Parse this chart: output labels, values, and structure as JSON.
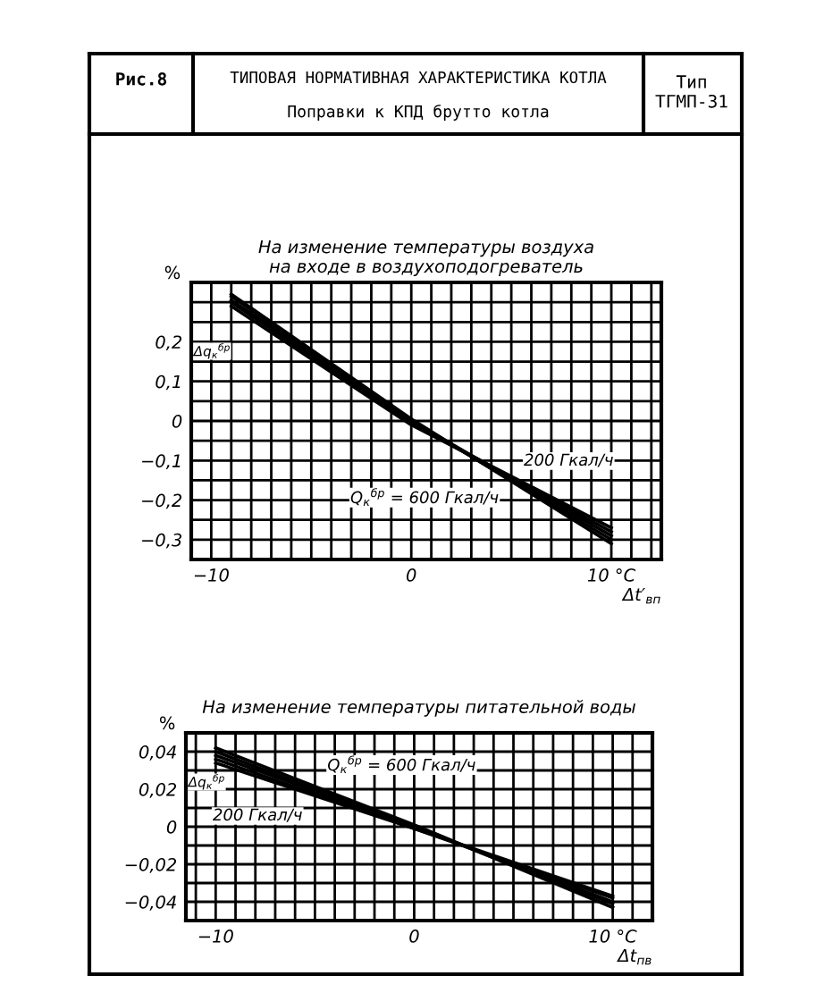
{
  "chart_data": [
    {
      "type": "line",
      "title": "ТИПОВАЯ НОРМАТИВНАЯ ХАРАКТЕРИСТИКА КОТЛА",
      "subtitle": "Поправки к КПД брутто котла",
      "annotations": [
        "Рис.8",
        "Тип\nТГМП-31",
        "На изменение температуры воздуха\nна входе в воздухоподогреватель",
        "Δq$_{к}$$^{бр}$"
      ],
      "ylabel": "%",
      "xlabel": "Δt′$_{вп}$",
      "x": [
        -9,
        0,
        10
      ],
      "series": [
        {
          "name": "200 Гкал/ч",
          "color": "#000000",
          "values": [
            0.32,
            0.005,
            -0.31
          ]
        },
        {
          "color": "#000000",
          "values": [
            0.315,
            0.0,
            -0.3
          ]
        },
        {
          "color": "#000000",
          "values": [
            0.305,
            0.0,
            -0.29
          ]
        },
        {
          "color": "#000000",
          "values": [
            0.3,
            -0.005,
            -0.28
          ]
        },
        {
          "name": "Q$_{к}$$^{бр}$ = 600 Гкал/ч",
          "color": "#000000",
          "values": [
            0.29,
            -0.01,
            -0.27
          ]
        }
      ],
      "xlim": [
        -11,
        12.5
      ],
      "ylim": [
        -0.35,
        0.35
      ],
      "xticks": [
        {
          "value": -11,
          "label": null
        },
        {
          "value": -10,
          "label": "−10"
        },
        {
          "value": -9,
          "label": null
        },
        {
          "value": -8,
          "label": null
        },
        {
          "value": -7,
          "label": null
        },
        {
          "value": -6,
          "label": null
        },
        {
          "value": -5,
          "label": null
        },
        {
          "value": -4,
          "label": null
        },
        {
          "value": -3,
          "label": null
        },
        {
          "value": -2,
          "label": null
        },
        {
          "value": -1,
          "label": null
        },
        0,
        {
          "value": 1,
          "label": null
        },
        {
          "value": 2,
          "label": null
        },
        {
          "value": 3,
          "label": null
        },
        {
          "value": 4,
          "label": null
        },
        {
          "value": 5,
          "label": null
        },
        {
          "value": 6,
          "label": null
        },
        {
          "value": 7,
          "label": null
        },
        {
          "value": 8,
          "label": null
        },
        {
          "value": 9,
          "label": null
        },
        {
          "value": 10,
          "label": "10 °C"
        },
        {
          "value": 11,
          "label": null
        },
        {
          "value": 12,
          "label": null
        }
      ],
      "yticks": [
        {
          "value": -0.35,
          "label": null
        },
        {
          "value": -0.3,
          "label": "−0,3"
        },
        {
          "value": -0.25,
          "label": null
        },
        {
          "value": -0.2,
          "label": "−0,2"
        },
        {
          "value": -0.15,
          "label": null
        },
        {
          "value": -0.1,
          "label": "−0,1"
        },
        {
          "value": -0.05,
          "label": null
        },
        0,
        {
          "value": 0.05,
          "label": null
        },
        {
          "value": 0.1,
          "label": "0,1"
        },
        {
          "value": 0.15,
          "label": null
        },
        {
          "value": 0.2,
          "label": "0,2"
        },
        {
          "value": 0.25,
          "label": null
        },
        {
          "value": 0.3,
          "label": null
        },
        {
          "value": 0.35,
          "label": null
        }
      ],
      "grid": true,
      "legend": false,
      "line_style": "solid",
      "marker": "none"
    },
    {
      "type": "line",
      "annotations": [
        "На изменение температуры питательной воды",
        "Δq$_{к}$$^{бр}$"
      ],
      "ylabel": "%",
      "xlabel": "Δt$_{пв}$",
      "x": [
        -10,
        0,
        10
      ],
      "series": [
        {
          "name": "Q$_{к}$$^{бр}$ = 600 Гкал/ч",
          "color": "#000000",
          "values": [
            0.042,
            0.001,
            -0.043
          ]
        },
        {
          "color": "#000000",
          "values": [
            0.04,
            0.0,
            -0.041
          ]
        },
        {
          "color": "#000000",
          "values": [
            0.038,
            0.0,
            -0.04
          ]
        },
        {
          "color": "#000000",
          "values": [
            0.036,
            -0.001,
            -0.038
          ]
        },
        {
          "name": "200 Гкал/ч",
          "color": "#000000",
          "values": [
            0.034,
            -0.001,
            -0.037
          ]
        }
      ],
      "xlim": [
        -11.5,
        12
      ],
      "ylim": [
        -0.05,
        0.05
      ],
      "xticks": [
        {
          "value": -11,
          "label": null
        },
        {
          "value": -10,
          "label": "−10"
        },
        {
          "value": -9,
          "label": null
        },
        {
          "value": -8,
          "label": null
        },
        {
          "value": -7,
          "label": null
        },
        {
          "value": -6,
          "label": null
        },
        {
          "value": -5,
          "label": null
        },
        {
          "value": -4,
          "label": null
        },
        {
          "value": -3,
          "label": null
        },
        {
          "value": -2,
          "label": null
        },
        {
          "value": -1,
          "label": null
        },
        0,
        {
          "value": 1,
          "label": null
        },
        {
          "value": 2,
          "label": null
        },
        {
          "value": 3,
          "label": null
        },
        {
          "value": 4,
          "label": null
        },
        {
          "value": 5,
          "label": null
        },
        {
          "value": 6,
          "label": null
        },
        {
          "value": 7,
          "label": null
        },
        {
          "value": 8,
          "label": null
        },
        {
          "value": 9,
          "label": null
        },
        {
          "value": 10,
          "label": "10 °C"
        },
        {
          "value": 11,
          "label": null
        }
      ],
      "yticks": [
        {
          "value": -0.05,
          "label": null
        },
        {
          "value": -0.04,
          "label": "−0,04"
        },
        {
          "value": -0.03,
          "label": null
        },
        {
          "value": -0.02,
          "label": "−0,02"
        },
        {
          "value": -0.01,
          "label": null
        },
        0,
        {
          "value": 0.01,
          "label": null
        },
        {
          "value": 0.02,
          "label": "0,02"
        },
        {
          "value": 0.03,
          "label": null
        },
        {
          "value": 0.04,
          "label": "0,04"
        },
        {
          "value": 0.05,
          "label": null
        }
      ],
      "grid": true,
      "legend": false,
      "line_style": "solid",
      "marker": "none"
    }
  ]
}
